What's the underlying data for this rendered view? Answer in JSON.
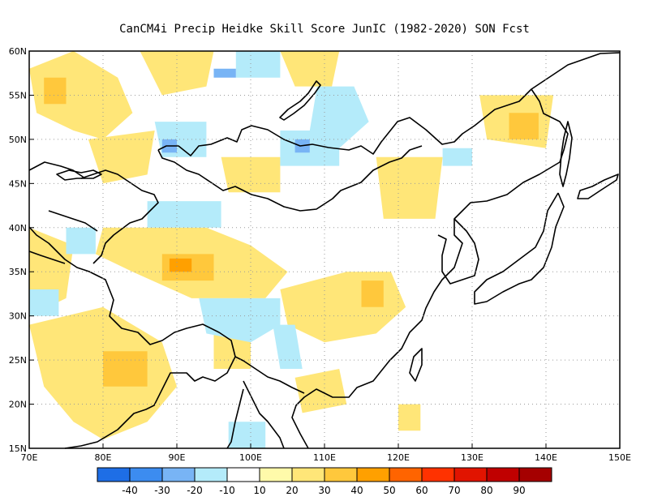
{
  "title": "CanCM4i Precip Heidke Skill Score JunIC (1982-2020) SON Fcst",
  "map": {
    "lon_range": [
      70,
      150
    ],
    "lat_range": [
      15,
      60
    ],
    "lon_ticks": [
      {
        "value": 70,
        "label": "70E"
      },
      {
        "value": 80,
        "label": "80E"
      },
      {
        "value": 90,
        "label": "90E"
      },
      {
        "value": 100,
        "label": "100E"
      },
      {
        "value": 110,
        "label": "110E"
      },
      {
        "value": 120,
        "label": "120E"
      },
      {
        "value": 130,
        "label": "130E"
      },
      {
        "value": 140,
        "label": "140E"
      },
      {
        "value": 150,
        "label": "150E"
      }
    ],
    "lat_ticks": [
      {
        "value": 15,
        "label": "15N"
      },
      {
        "value": 20,
        "label": "20N"
      },
      {
        "value": 25,
        "label": "25N"
      },
      {
        "value": 30,
        "label": "30N"
      },
      {
        "value": 35,
        "label": "35N"
      },
      {
        "value": 40,
        "label": "40N"
      },
      {
        "value": 45,
        "label": "45N"
      },
      {
        "value": 50,
        "label": "50N"
      },
      {
        "value": 55,
        "label": "55N"
      },
      {
        "value": 60,
        "label": "60N"
      }
    ],
    "grid": true
  },
  "colorbar": {
    "colors": [
      "#1e6ee6",
      "#3c8cf0",
      "#78b4f5",
      "#b4ebfa",
      "#ffffff",
      "#fffaaa",
      "#ffe678",
      "#ffc83c",
      "#ffa000",
      "#ff6400",
      "#ff3200",
      "#e11400",
      "#c00000",
      "#a50000"
    ],
    "labels": [
      "-40",
      "-30",
      "-20",
      "-10",
      "10",
      "20",
      "30",
      "40",
      "50",
      "60",
      "70",
      "80",
      "90"
    ]
  },
  "skill_regions": [
    {
      "level": 20,
      "points": [
        [
          70,
          58
        ],
        [
          76,
          60
        ],
        [
          82,
          57
        ],
        [
          84,
          53
        ],
        [
          80,
          50
        ],
        [
          76,
          51
        ],
        [
          71,
          53
        ]
      ]
    },
    {
      "level": 30,
      "points": [
        [
          72,
          57
        ],
        [
          75,
          57
        ],
        [
          75,
          54
        ],
        [
          72,
          54
        ]
      ]
    },
    {
      "level": 20,
      "points": [
        [
          85,
          60
        ],
        [
          95,
          60
        ],
        [
          94,
          56
        ],
        [
          88,
          55
        ]
      ]
    },
    {
      "level": 20,
      "points": [
        [
          104,
          60
        ],
        [
          112,
          60
        ],
        [
          111,
          56
        ],
        [
          106,
          56
        ]
      ]
    },
    {
      "level": 20,
      "points": [
        [
          78,
          50
        ],
        [
          87,
          51
        ],
        [
          86,
          46
        ],
        [
          80,
          45
        ]
      ]
    },
    {
      "level": 20,
      "points": [
        [
          96,
          48
        ],
        [
          104,
          48
        ],
        [
          104,
          44
        ],
        [
          97,
          44
        ]
      ]
    },
    {
      "level": 20,
      "points": [
        [
          117,
          48
        ],
        [
          126,
          48
        ],
        [
          125,
          41
        ],
        [
          118,
          41
        ]
      ]
    },
    {
      "level": 20,
      "points": [
        [
          131,
          55
        ],
        [
          141,
          55
        ],
        [
          140,
          49
        ],
        [
          132,
          50
        ]
      ]
    },
    {
      "level": 30,
      "points": [
        [
          135,
          53
        ],
        [
          139,
          53
        ],
        [
          139,
          50
        ],
        [
          135,
          50
        ]
      ]
    },
    {
      "level": 20,
      "points": [
        [
          80,
          40
        ],
        [
          94,
          40
        ],
        [
          100,
          38
        ],
        [
          105,
          35
        ],
        [
          102,
          32
        ],
        [
          92,
          32
        ],
        [
          84,
          35
        ],
        [
          79,
          37
        ]
      ]
    },
    {
      "level": 30,
      "points": [
        [
          88,
          37
        ],
        [
          95,
          37
        ],
        [
          95,
          34
        ],
        [
          88,
          34
        ]
      ]
    },
    {
      "level": 40,
      "points": [
        [
          89,
          36.5
        ],
        [
          92,
          36.5
        ],
        [
          92,
          35
        ],
        [
          89,
          35
        ]
      ]
    },
    {
      "level": 20,
      "points": [
        [
          70,
          40
        ],
        [
          76,
          38
        ],
        [
          75,
          32
        ],
        [
          70,
          30
        ]
      ]
    },
    {
      "level": 20,
      "points": [
        [
          70,
          29
        ],
        [
          80,
          31
        ],
        [
          88,
          27
        ],
        [
          90,
          22
        ],
        [
          86,
          18
        ],
        [
          80,
          16
        ],
        [
          76,
          18
        ],
        [
          72,
          22
        ]
      ]
    },
    {
      "level": 30,
      "points": [
        [
          80,
          26
        ],
        [
          86,
          26
        ],
        [
          86,
          22
        ],
        [
          80,
          22
        ]
      ]
    },
    {
      "level": 20,
      "points": [
        [
          104,
          33
        ],
        [
          113,
          35
        ],
        [
          119,
          35
        ],
        [
          121,
          31
        ],
        [
          117,
          28
        ],
        [
          110,
          27
        ],
        [
          105,
          29
        ]
      ]
    },
    {
      "level": 30,
      "points": [
        [
          115,
          34
        ],
        [
          118,
          34
        ],
        [
          118,
          31
        ],
        [
          115,
          31
        ]
      ]
    },
    {
      "level": 20,
      "points": [
        [
          95,
          29
        ],
        [
          100,
          29
        ],
        [
          100,
          24
        ],
        [
          95,
          24
        ]
      ]
    },
    {
      "level": 20,
      "points": [
        [
          106,
          23
        ],
        [
          112,
          24
        ],
        [
          113,
          20
        ],
        [
          107,
          19
        ]
      ]
    },
    {
      "level": 20,
      "points": [
        [
          120,
          20
        ],
        [
          123,
          20
        ],
        [
          123,
          17
        ],
        [
          120,
          17
        ]
      ]
    },
    {
      "level": -10,
      "points": [
        [
          98,
          60
        ],
        [
          104,
          60
        ],
        [
          104,
          57
        ],
        [
          98,
          57
        ]
      ]
    },
    {
      "level": -10,
      "points": [
        [
          109,
          56
        ],
        [
          114,
          56
        ],
        [
          116,
          52
        ],
        [
          112,
          49
        ],
        [
          108,
          51
        ]
      ]
    },
    {
      "level": -10,
      "points": [
        [
          87,
          52
        ],
        [
          94,
          52
        ],
        [
          94,
          48
        ],
        [
          88,
          48
        ]
      ]
    },
    {
      "level": -20,
      "points": [
        [
          88,
          50
        ],
        [
          90,
          50
        ],
        [
          90,
          48.5
        ],
        [
          88,
          48.5
        ]
      ]
    },
    {
      "level": -10,
      "points": [
        [
          104,
          51
        ],
        [
          112,
          51
        ],
        [
          112,
          47
        ],
        [
          104,
          47
        ]
      ]
    },
    {
      "level": -20,
      "points": [
        [
          106,
          50
        ],
        [
          108,
          50
        ],
        [
          108,
          48.5
        ],
        [
          106,
          48.5
        ]
      ]
    },
    {
      "level": -20,
      "points": [
        [
          95,
          58
        ],
        [
          98,
          58
        ],
        [
          98,
          57
        ],
        [
          95,
          57
        ]
      ]
    },
    {
      "level": -10,
      "points": [
        [
          86,
          43
        ],
        [
          96,
          43
        ],
        [
          96,
          40
        ],
        [
          86,
          40
        ]
      ]
    },
    {
      "level": -10,
      "points": [
        [
          75,
          40
        ],
        [
          79,
          40
        ],
        [
          79,
          37
        ],
        [
          75,
          37
        ]
      ]
    },
    {
      "level": -10,
      "points": [
        [
          93,
          32
        ],
        [
          104,
          32
        ],
        [
          104,
          29
        ],
        [
          100,
          27
        ],
        [
          94,
          28
        ]
      ]
    },
    {
      "level": -10,
      "points": [
        [
          103,
          29
        ],
        [
          106,
          29
        ],
        [
          107,
          24
        ],
        [
          104,
          24
        ]
      ]
    },
    {
      "level": -10,
      "points": [
        [
          70,
          33
        ],
        [
          74,
          33
        ],
        [
          74,
          30
        ],
        [
          70,
          30
        ]
      ]
    },
    {
      "level": -10,
      "points": [
        [
          126,
          49
        ],
        [
          130,
          49
        ],
        [
          130,
          47
        ],
        [
          126,
          47
        ]
      ]
    },
    {
      "level": -10,
      "points": [
        [
          97,
          18
        ],
        [
          102,
          18
        ],
        [
          102,
          15
        ],
        [
          97,
          15
        ]
      ]
    }
  ]
}
